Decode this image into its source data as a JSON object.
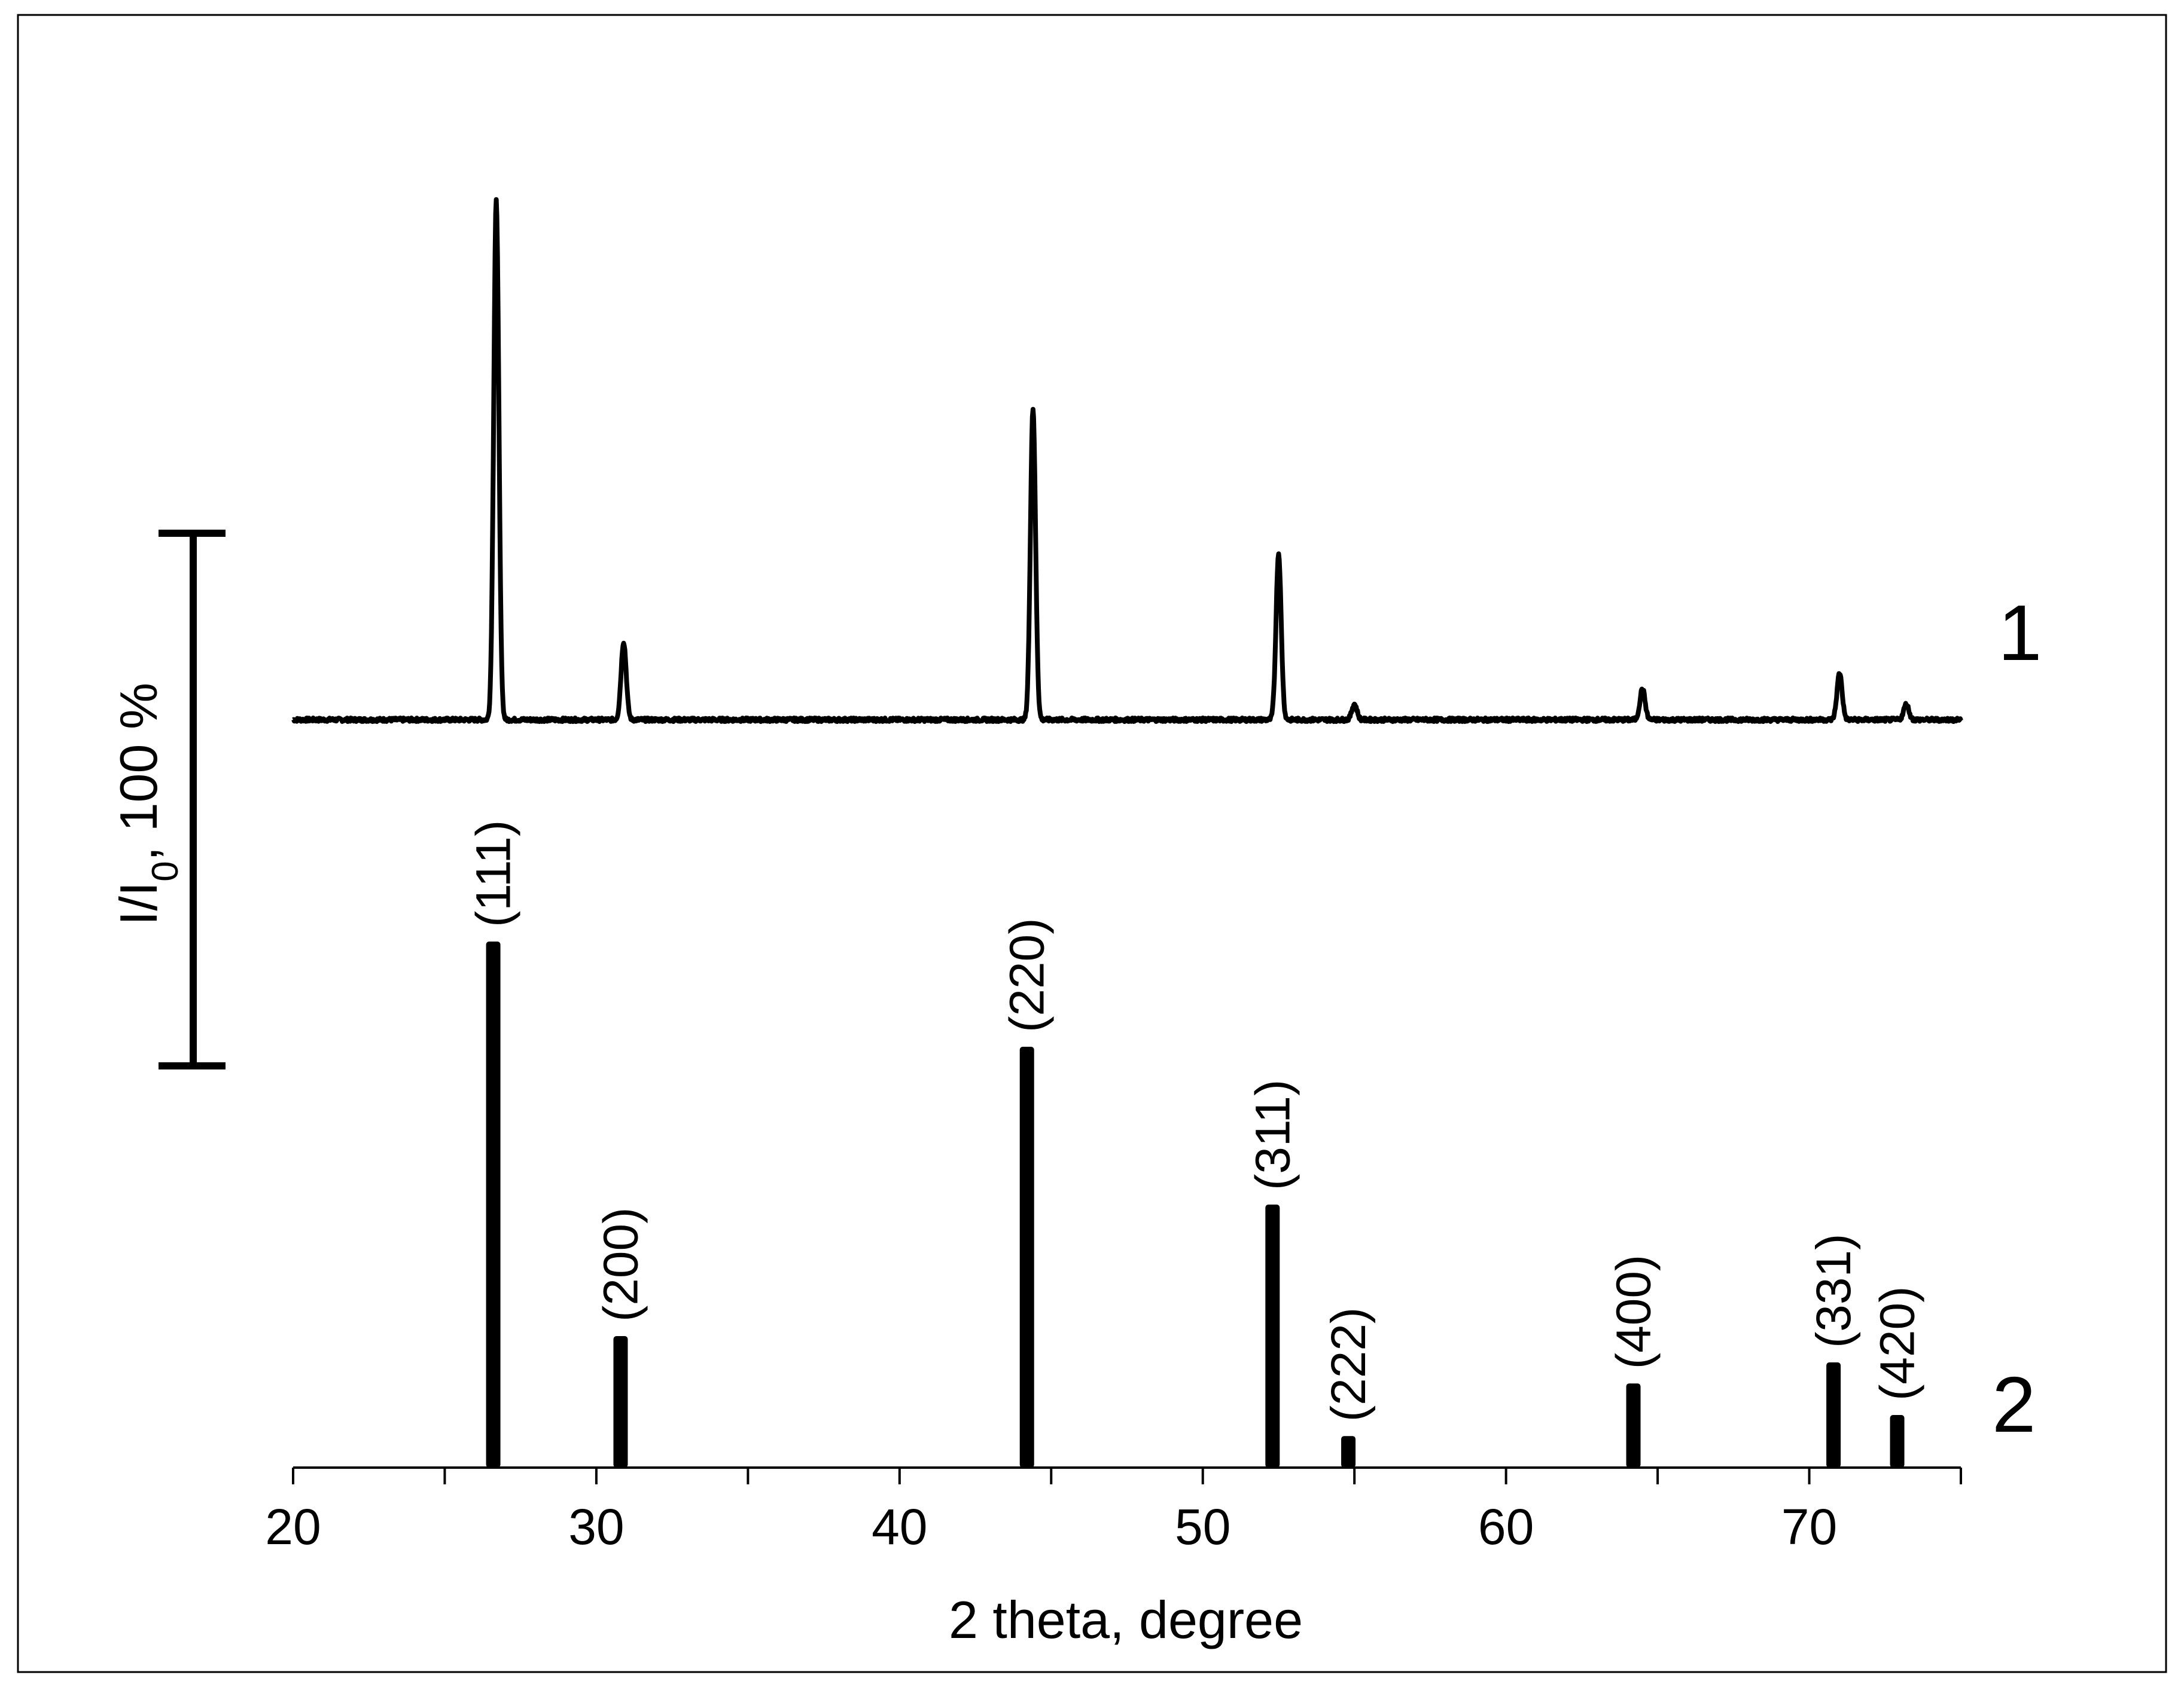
{
  "chart_data": {
    "type": "line",
    "xlabel": "2 theta, degree",
    "ylabel": "I/I",
    "ylabel_subscript": "0",
    "ylabel_suffix": ", 100 %",
    "xlim": [
      20,
      75
    ],
    "x_ticks": [
      20,
      30,
      40,
      50,
      60,
      70
    ],
    "x_minor_ticks": [
      25,
      35,
      45,
      55,
      65,
      75
    ],
    "series": [
      {
        "name": "1",
        "kind": "diffraction-pattern",
        "peaks": [
          {
            "x": 26.7,
            "y": 100
          },
          {
            "x": 30.9,
            "y": 15
          },
          {
            "x": 44.4,
            "y": 60
          },
          {
            "x": 52.5,
            "y": 32
          },
          {
            "x": 55.0,
            "y": 3
          },
          {
            "x": 64.5,
            "y": 6
          },
          {
            "x": 71.0,
            "y": 9
          },
          {
            "x": 73.2,
            "y": 3
          }
        ]
      },
      {
        "name": "2",
        "kind": "reference-lines",
        "lines": [
          {
            "x": 26.6,
            "y": 100,
            "hkl": "(111)"
          },
          {
            "x": 30.8,
            "y": 25,
            "hkl": "(200)"
          },
          {
            "x": 44.2,
            "y": 80,
            "hkl": "(220)"
          },
          {
            "x": 52.3,
            "y": 50,
            "hkl": "(311)"
          },
          {
            "x": 54.8,
            "y": 6,
            "hkl": "(222)"
          },
          {
            "x": 64.2,
            "y": 16,
            "hkl": "(400)"
          },
          {
            "x": 70.8,
            "y": 20,
            "hkl": "(331)"
          },
          {
            "x": 72.9,
            "y": 10,
            "hkl": "(420)"
          }
        ]
      }
    ],
    "scale_bar": {
      "value": 100,
      "unit": "%"
    },
    "grid": false,
    "legend": "none"
  }
}
